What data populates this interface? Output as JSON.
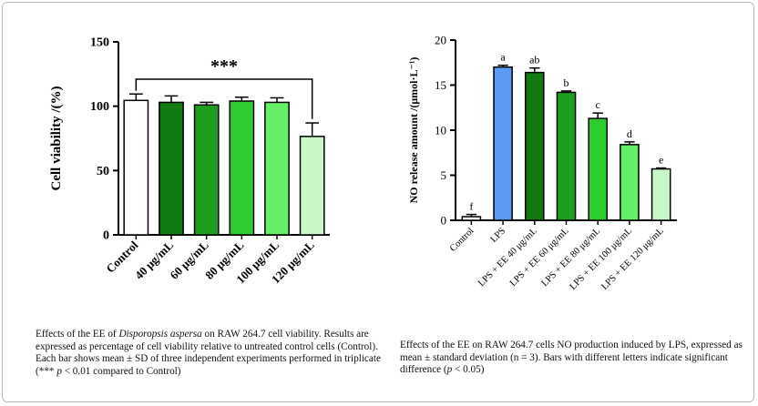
{
  "chart_data": [
    {
      "type": "bar",
      "ylabel": "Cell viability /(%)",
      "ylim": [
        0,
        150
      ],
      "yticks": [
        "0",
        "50",
        "100",
        "150"
      ],
      "categories": [
        "Control",
        "40 μg/mL",
        "60 μg/mL",
        "80 μg/mL",
        "100 μg/mL",
        "120 μg/mL"
      ],
      "values": [
        104.5,
        103,
        101,
        104,
        103,
        76.5
      ],
      "errors": [
        5,
        5,
        2,
        3,
        3.5,
        10.5
      ],
      "colors": [
        "#ffffff",
        "#127a12",
        "#1e9e1e",
        "#2ecc2e",
        "#66ee66",
        "#c8f7c8"
      ],
      "significance": "***"
    },
    {
      "type": "bar",
      "ylabel": "NO release amount /(μmol·L⁻¹)",
      "ylim": [
        0,
        20
      ],
      "yticks": [
        "0",
        "5",
        "10",
        "15",
        "20"
      ],
      "categories": [
        "Control",
        "LPS",
        "LPS + EE 40 μg/mL",
        "LPS + EE 60 μg/mL",
        "LPS + EE 80 μg/mL",
        "LPS + EE 100 μg/mL",
        "LPS + EE 120 μg/mL"
      ],
      "values": [
        0.4,
        17.0,
        16.4,
        14.2,
        11.3,
        8.4,
        5.7
      ],
      "errors": [
        0.25,
        0.2,
        0.5,
        0.15,
        0.6,
        0.3,
        0.1
      ],
      "letters": [
        "f",
        "a",
        "ab",
        "b",
        "c",
        "d",
        "e"
      ],
      "colors": [
        "#ffffff",
        "#5b9bf5",
        "#127a12",
        "#1e9e1e",
        "#2ecc2e",
        "#66ee66",
        "#c8f7c8"
      ]
    }
  ],
  "captions": {
    "left": {
      "p1": "Effects of the EE of ",
      "species": "Disporopsis aspersa",
      "p2": " on RAW 264.7 cell viability. Results are expressed as percentage of cell viability relative to untreated control cells (Control). Each bar shows mean ± SD of three independent experiments performed in triplicate (*** ",
      "pvar": "p",
      "p3": " < 0.01 compared to Control)"
    },
    "right": {
      "p1": "Effects of the EE on RAW 264.7 cells NO production induced by LPS, expressed as mean ± standard deviation (n = 3). Bars with different letters indicate significant difference (",
      "pvar": "p",
      "p2": " < 0.05)"
    }
  }
}
